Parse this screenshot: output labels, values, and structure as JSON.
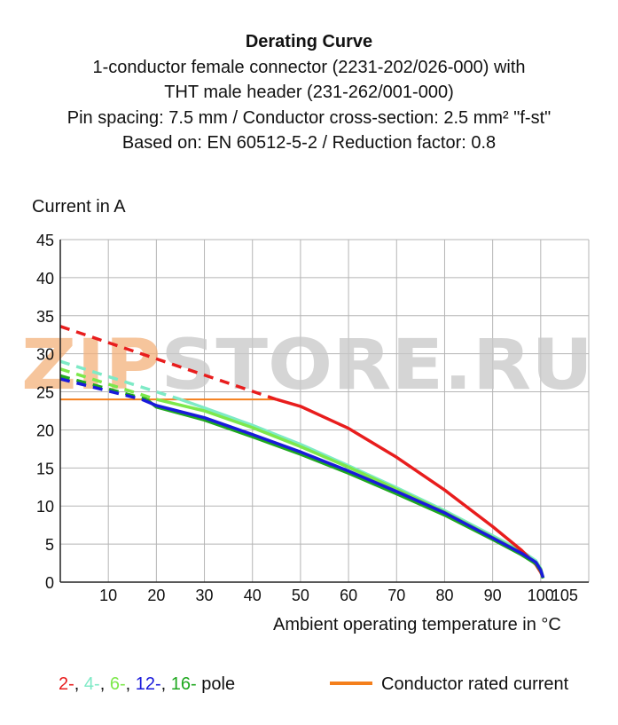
{
  "title": {
    "main": "Derating Curve",
    "line1": "1-conductor female connector (2231-202/026-000) with",
    "line2": "THT male header (231-262/001-000)",
    "line3": "Pin spacing: 7.5 mm / Conductor cross-section: 2.5 mm² \"f-st\"",
    "line4": "Based on: EN 60512-5-2 / Reduction factor: 0.8"
  },
  "watermark": {
    "part1": "ZIP",
    "part2": "STORE.RU",
    "color1": "#f4b27c",
    "color2": "#c8c8c8"
  },
  "legend": {
    "poles": [
      {
        "label": "2-",
        "color": "#e81d1d"
      },
      {
        "label": "4-",
        "color": "#7eeac6"
      },
      {
        "label": "6-",
        "color": "#7de84b"
      },
      {
        "label": "12-",
        "color": "#1a1adb"
      },
      {
        "label": "16-",
        "color": "#1fa81f"
      }
    ],
    "sep": ", ",
    "pole_suffix": " pole",
    "rated_label": "Conductor rated current",
    "rated_color": "#f47f1c"
  },
  "chart_data": {
    "type": "line",
    "title": "Derating Curve",
    "xlabel": "Ambient operating temperature in °C",
    "ylabel": "Current in A",
    "xlim": [
      0,
      110
    ],
    "ylim": [
      0,
      45
    ],
    "xticks": [
      10,
      20,
      30,
      40,
      50,
      60,
      70,
      80,
      90,
      100,
      105
    ],
    "yticks": [
      0,
      5,
      10,
      15,
      20,
      25,
      30,
      35,
      40,
      45
    ],
    "grid": true,
    "rated_current": {
      "name": "Conductor rated current",
      "value": 24,
      "x_range": [
        0,
        45
      ],
      "color": "#f47f1c"
    },
    "series": [
      {
        "name": "2-",
        "color": "#e81d1d",
        "dashed": [
          [
            0,
            33.6
          ],
          [
            45,
            24
          ]
        ],
        "solid": [
          [
            45,
            24
          ],
          [
            50,
            23.1
          ],
          [
            60,
            20.2
          ],
          [
            70,
            16.4
          ],
          [
            80,
            12.1
          ],
          [
            90,
            7.3
          ],
          [
            96,
            4.2
          ],
          [
            99,
            2.3
          ],
          [
            100,
            1.3
          ],
          [
            100.5,
            0.6
          ]
        ]
      },
      {
        "name": "4-",
        "color": "#7eeac6",
        "dashed": [
          [
            0,
            29.0
          ],
          [
            25,
            24
          ]
        ],
        "solid": [
          [
            25,
            24
          ],
          [
            30,
            22.9
          ],
          [
            40,
            20.6
          ],
          [
            50,
            18.1
          ],
          [
            60,
            15.3
          ],
          [
            70,
            12.4
          ],
          [
            80,
            9.4
          ],
          [
            90,
            6.1
          ],
          [
            96,
            4.1
          ],
          [
            99,
            2.8
          ],
          [
            100,
            1.8
          ],
          [
            100.5,
            0.6
          ]
        ]
      },
      {
        "name": "6-",
        "color": "#7de84b",
        "dashed": [
          [
            0,
            28.0
          ],
          [
            20,
            24
          ]
        ],
        "solid": [
          [
            20,
            24
          ],
          [
            30,
            22.5
          ],
          [
            40,
            20.3
          ],
          [
            50,
            17.8
          ],
          [
            60,
            15.1
          ],
          [
            70,
            12.2
          ],
          [
            80,
            9.2
          ],
          [
            90,
            5.9
          ],
          [
            96,
            3.9
          ],
          [
            99,
            2.6
          ],
          [
            100,
            1.7
          ],
          [
            100.5,
            0.6
          ]
        ]
      },
      {
        "name": "12-",
        "color": "#1a1adb",
        "dashed": [
          [
            0,
            26.7
          ],
          [
            17,
            24
          ]
        ],
        "solid": [
          [
            17,
            24
          ],
          [
            20,
            23.2
          ],
          [
            30,
            21.6
          ],
          [
            40,
            19.4
          ],
          [
            50,
            17.1
          ],
          [
            60,
            14.6
          ],
          [
            70,
            11.9
          ],
          [
            80,
            9.1
          ],
          [
            90,
            5.8
          ],
          [
            96,
            3.8
          ],
          [
            99,
            2.6
          ],
          [
            100,
            1.6
          ],
          [
            100.5,
            0.6
          ]
        ]
      },
      {
        "name": "16-",
        "color": "#1fa81f",
        "dashed": [
          [
            0,
            27.1
          ],
          [
            18,
            24
          ]
        ],
        "solid": [
          [
            18,
            24
          ],
          [
            20,
            23.0
          ],
          [
            30,
            21.3
          ],
          [
            40,
            19.1
          ],
          [
            50,
            16.8
          ],
          [
            60,
            14.3
          ],
          [
            70,
            11.6
          ],
          [
            80,
            8.8
          ],
          [
            90,
            5.6
          ],
          [
            96,
            3.6
          ],
          [
            99,
            2.4
          ],
          [
            100,
            1.5
          ],
          [
            100.5,
            0.5
          ]
        ]
      }
    ]
  }
}
